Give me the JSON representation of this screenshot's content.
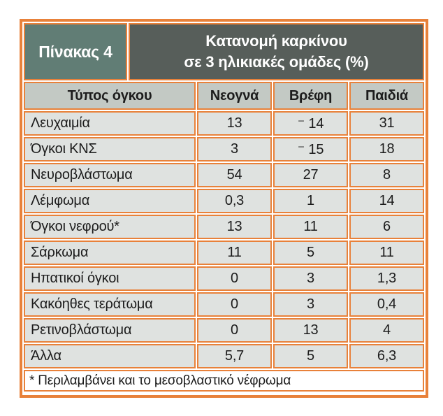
{
  "table": {
    "badge": "Πίνακας 4",
    "title_line1": "Κατανομή καρκίνου",
    "title_line2": "σε 3 ηλικιακές ομάδες (%)",
    "columns": [
      "Τύπος όγκου",
      "Νεογνά",
      "Βρέφη",
      "Παιδιά"
    ],
    "rows": [
      {
        "label": "Λευχαιμία",
        "values": [
          "13",
          "⁻ 14",
          "31"
        ]
      },
      {
        "label": "Όγκοι ΚΝΣ",
        "values": [
          "3",
          "⁻ 15",
          "18"
        ]
      },
      {
        "label": "Νευροβλάστωμα",
        "values": [
          "54",
          "27",
          "8"
        ]
      },
      {
        "label": "Λέμφωμα",
        "values": [
          "0,3",
          "1",
          "14"
        ]
      },
      {
        "label": "Όγκοι νεφρού*",
        "values": [
          "13",
          "11",
          "6"
        ]
      },
      {
        "label": "Σάρκωμα",
        "values": [
          "11",
          "5",
          "11"
        ]
      },
      {
        "label": "Ηπατικοί όγκοι",
        "values": [
          "0",
          "3",
          "1,3"
        ]
      },
      {
        "label": "Κακόηθες τεράτωμα",
        "values": [
          "0",
          "3",
          "0,4"
        ]
      },
      {
        "label": "Ρετινοβλάστωμα",
        "values": [
          "0",
          "13",
          "4"
        ]
      },
      {
        "label": "Άλλα",
        "values": [
          "5,7",
          "5",
          "6,3"
        ]
      }
    ],
    "footnote": "* Περιλαμβάνει και το μεσοβλαστικό νέφρωμα"
  },
  "colors": {
    "border_orange": "#e8813a",
    "badge_teal": "#617d75",
    "title_dark": "#575e5a",
    "colhead_gray": "#c3c9c4",
    "row_gray": "#dfe2e0",
    "footnote_bg": "#ffffff",
    "text": "#1c1c1c"
  }
}
